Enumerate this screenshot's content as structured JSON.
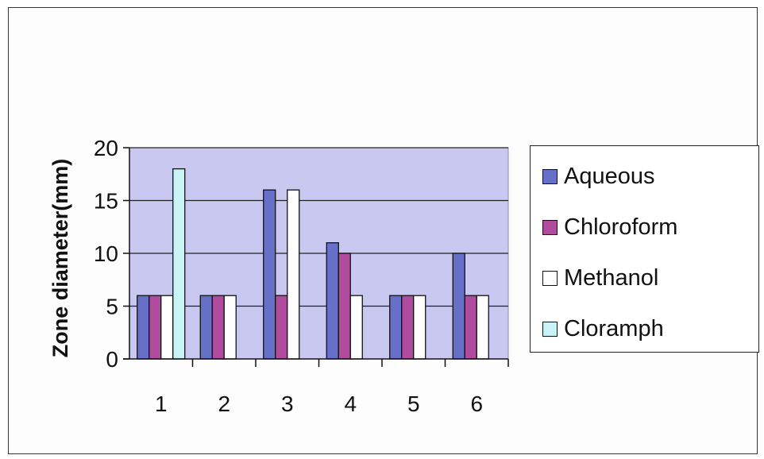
{
  "chart_data": {
    "type": "bar",
    "ylabel": "Zone diameter(mm)",
    "xlabel": "",
    "categories": [
      "1",
      "2",
      "3",
      "4",
      "5",
      "6"
    ],
    "ylim": [
      0,
      20
    ],
    "yticks": [
      "0",
      "5",
      "10",
      "15",
      "20"
    ],
    "grid": true,
    "legend_position": "right",
    "plot_background": "#c8c8f0",
    "series": [
      {
        "name": "Aqueous",
        "color": "#6670c8",
        "values": [
          6,
          6,
          16,
          11,
          6,
          10
        ]
      },
      {
        "name": "Chloroform",
        "color": "#b04c9e",
        "values": [
          6,
          6,
          6,
          10,
          6,
          6
        ]
      },
      {
        "name": "Methanol",
        "color": "#ffffff",
        "values": [
          6,
          6,
          16,
          6,
          6,
          6
        ]
      },
      {
        "name": "Cloramph",
        "color": "#c8f4f6",
        "values": [
          18,
          null,
          null,
          null,
          null,
          null
        ]
      }
    ]
  }
}
